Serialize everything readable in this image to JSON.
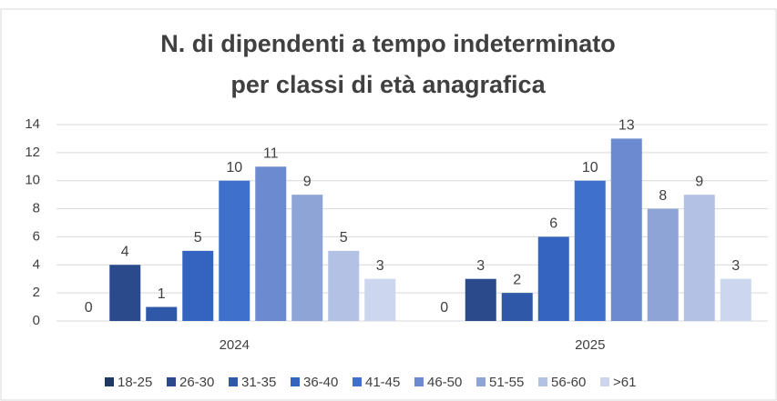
{
  "chart_data": {
    "type": "bar",
    "title": "N. di dipendenti a tempo indeterminato",
    "subtitle": "per classi di età anagrafica",
    "categories": [
      "2024",
      "2025"
    ],
    "series": [
      {
        "name": "18-25",
        "color": "#1f3864",
        "values": [
          0,
          0
        ]
      },
      {
        "name": "26-30",
        "color": "#2a4a8c",
        "values": [
          4,
          3
        ]
      },
      {
        "name": "31-35",
        "color": "#2f58a8",
        "values": [
          1,
          2
        ]
      },
      {
        "name": "36-40",
        "color": "#3464c0",
        "values": [
          5,
          6
        ]
      },
      {
        "name": "41-45",
        "color": "#3f70cc",
        "values": [
          10,
          10
        ]
      },
      {
        "name": "46-50",
        "color": "#6b8ad0",
        "values": [
          11,
          13
        ]
      },
      {
        "name": "51-55",
        "color": "#8fa4d6",
        "values": [
          9,
          8
        ]
      },
      {
        "name": "56-60",
        "color": "#b3c2e4",
        "values": [
          5,
          9
        ]
      },
      {
        "name": ">61",
        "color": "#ccd6ee",
        "values": [
          3,
          3
        ]
      }
    ],
    "ylim": [
      0,
      14
    ],
    "yticks": [
      0,
      2,
      4,
      6,
      8,
      10,
      12,
      14
    ],
    "grid": true,
    "legend": "bottom"
  }
}
